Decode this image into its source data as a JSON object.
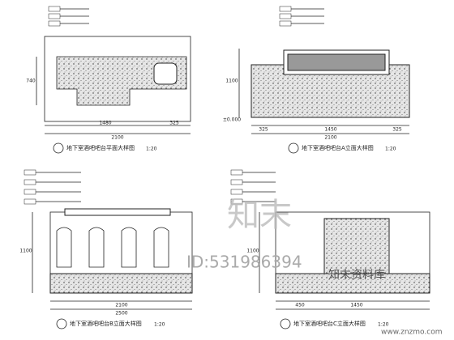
{
  "views": [
    {
      "title": "地下室酒吧吧台平面大样图",
      "scale": "1:20",
      "dims": [
        "1480",
        "325",
        "2100",
        "740"
      ]
    },
    {
      "title": "地下室酒吧吧台A立面大样图",
      "scale": "1:20",
      "dims": [
        "325",
        "1450",
        "325",
        "2100",
        "1100",
        "±0.000"
      ]
    },
    {
      "title": "地下室酒吧吧台B立面大样图",
      "scale": "1:20",
      "dims": [
        "2100",
        "2500",
        "1100"
      ]
    },
    {
      "title": "地下室酒吧吧台C立面大样图",
      "scale": "1:20",
      "dims": [
        "450",
        "1450",
        "1100"
      ]
    }
  ],
  "watermark": {
    "brand": "知末",
    "id": "ID:531986394",
    "library": "知末资料库",
    "url": "www.znzmo.com"
  }
}
